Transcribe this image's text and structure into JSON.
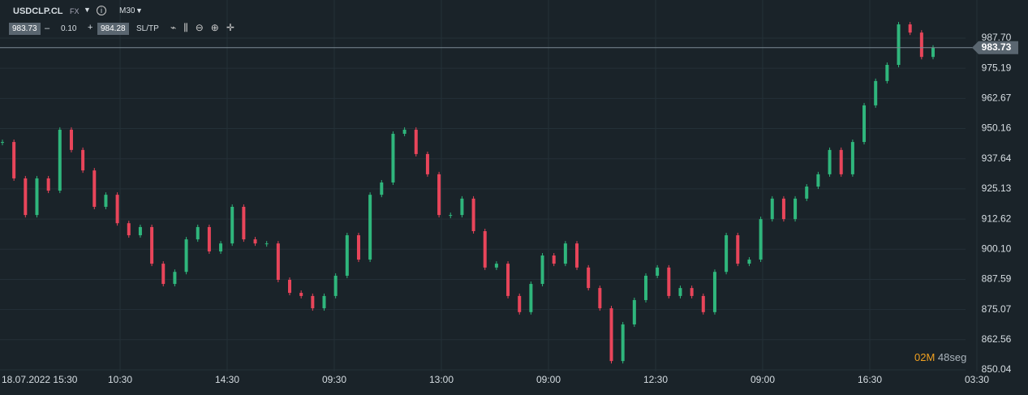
{
  "toolbar": {
    "symbol": "USDCLP.CL",
    "market": "FX",
    "timeframe": "M30",
    "bid": "983.73",
    "lot": "0.10",
    "ask": "984.28",
    "sltp": "SL/TP"
  },
  "chart_data": {
    "type": "candlestick",
    "values": [
      944.6,
      929.5,
      914.3,
      929.5,
      924.4,
      949.7,
      941.3,
      932.8,
      917.7,
      922.7,
      910.9,
      905.9,
      909.3,
      894.1,
      885.7,
      890.7,
      904.2,
      909.3,
      899.2,
      902.5,
      917.7,
      904.2,
      902.5,
      902.5,
      887.4,
      882.0,
      880.7,
      875.6,
      880.7,
      889.1,
      905.9,
      895.8,
      922.7,
      927.8,
      948.0,
      949.7,
      939.6,
      931.2,
      914.3,
      914.3,
      921.1,
      907.6,
      892.5,
      894.1,
      880.7,
      874.0,
      885.7,
      897.5,
      894.1,
      902.5,
      892.5,
      884.0,
      875.6,
      853.7,
      868.9,
      879.0,
      889.1,
      892.5,
      880.7,
      884.0,
      880.7,
      874.0,
      890.7,
      905.9,
      894.1,
      895.8,
      912.6,
      921.1,
      912.6,
      921.1,
      926.1,
      931.2,
      941.3,
      931.2,
      944.6,
      959.8,
      969.9,
      976.6,
      993.4,
      990.0,
      979.9,
      983.73
    ],
    "up_color": "#2fb67c",
    "down_color": "#e8455a",
    "ylim": [
      849.37,
      1000.83
    ],
    "yticks": [
      {
        "value": 987.7,
        "label": "987.70"
      },
      975.19,
      962.67,
      950.16,
      937.64,
      925.13,
      912.62,
      {
        "value": 900.1,
        "label": "900.10"
      },
      887.59,
      875.07,
      862.56,
      850.04
    ],
    "x_tick_labels": [
      "18.07.2022 15:30",
      "10:30",
      "14:30",
      "09:30",
      "13:00",
      "09:00",
      "12:30",
      "09:00",
      "16:30",
      "03:30"
    ],
    "last_price": 983.73,
    "countdown": {
      "minutes": "02M",
      "seconds": "48seg"
    },
    "grid": true
  }
}
